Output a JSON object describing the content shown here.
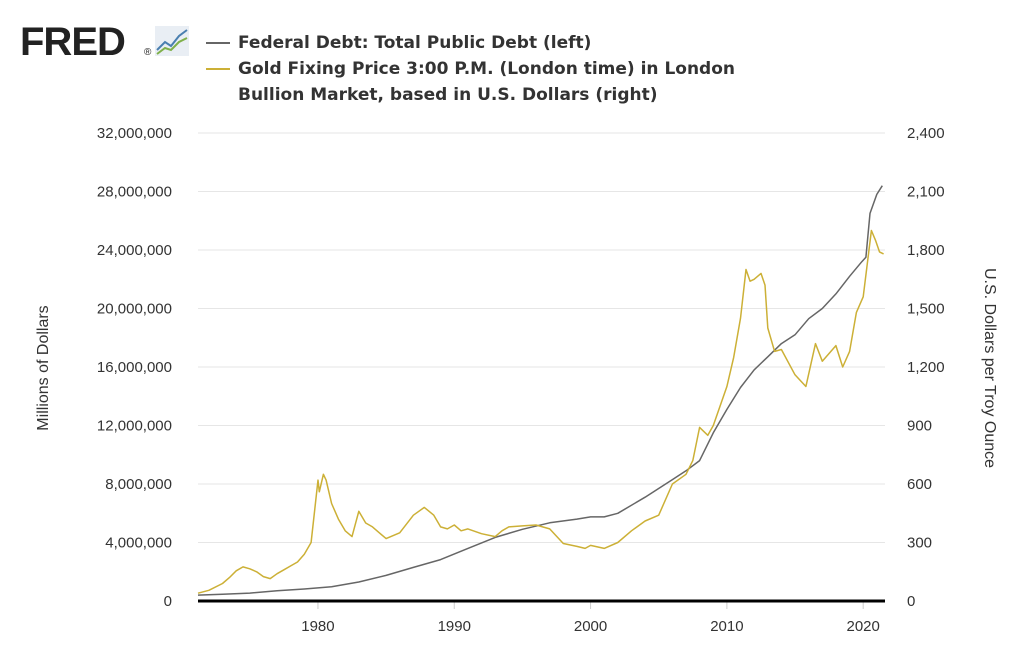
{
  "brand": {
    "text": "FRED",
    "mark": "®"
  },
  "chart_data": {
    "type": "line",
    "legend": [
      {
        "name": "Federal Debt: Total Public Debt (left)",
        "color": "#666666"
      },
      {
        "name": "Gold Fixing Price 3:00 P.M. (London time) in London",
        "name2": "Bullion Market, based in U.S. Dollars (right)",
        "color": "#ccb036"
      }
    ],
    "xlabel": "",
    "ylabel_left": "Millions of Dollars",
    "ylabel_right": "U.S. Dollars per Troy Ounce",
    "xlim": [
      1971.2,
      2021.6
    ],
    "ylim_left": [
      0,
      32000000
    ],
    "ylim_right": [
      0,
      2400
    ],
    "x_ticks": [
      1980,
      1990,
      2000,
      2010,
      2020
    ],
    "y_ticks_left": [
      "0",
      "4,000,000",
      "8,000,000",
      "12,000,000",
      "16,000,000",
      "20,000,000",
      "24,000,000",
      "28,000,000",
      "32,000,000"
    ],
    "y_ticks_left_values": [
      0,
      4000000,
      8000000,
      12000000,
      16000000,
      20000000,
      24000000,
      28000000,
      32000000
    ],
    "y_ticks_right": [
      "0",
      "300",
      "600",
      "900",
      "1,200",
      "1,500",
      "1,800",
      "2,100",
      "2,400"
    ],
    "y_ticks_right_values": [
      0,
      300,
      600,
      900,
      1200,
      1500,
      1800,
      2100,
      2400
    ],
    "grid": true,
    "series": [
      {
        "name": "Federal Debt: Total Public Debt (left)",
        "axis": "left",
        "x": [
          1971.2,
          1973,
          1975,
          1977,
          1979,
          1981,
          1983,
          1985,
          1987,
          1989,
          1991,
          1993,
          1995,
          1997,
          1999,
          2000,
          2001,
          2002,
          2004,
          2006,
          2007,
          2008,
          2009,
          2010,
          2011,
          2012,
          2013,
          2014,
          2015,
          2016,
          2017,
          2018,
          2019,
          2019.9,
          2020.2,
          2020.5,
          2021,
          2021.4
        ],
        "y": [
          400000,
          460000,
          540000,
          700000,
          820000,
          970000,
          1300000,
          1750000,
          2300000,
          2830000,
          3600000,
          4350000,
          4900000,
          5350000,
          5600000,
          5750000,
          5750000,
          6000000,
          7100000,
          8300000,
          8900000,
          9600000,
          11500000,
          13100000,
          14600000,
          15800000,
          16700000,
          17600000,
          18200000,
          19300000,
          20000000,
          21000000,
          22200000,
          23200000,
          23500000,
          26500000,
          27800000,
          28400000
        ]
      },
      {
        "name": "Gold Fixing Price 3:00 P.M. (London time) in London Bullion Market, based in U.S. Dollars (right)",
        "axis": "right",
        "x": [
          1971.2,
          1972,
          1973,
          1973.5,
          1974,
          1974.5,
          1975,
          1975.5,
          1976,
          1976.5,
          1977,
          1977.5,
          1978,
          1978.5,
          1979,
          1979.5,
          1980,
          1980.1,
          1980.4,
          1980.6,
          1981,
          1981.5,
          1982,
          1982.5,
          1983,
          1983.5,
          1984,
          1984.5,
          1985,
          1986,
          1987,
          1987.8,
          1988.5,
          1989,
          1989.5,
          1990,
          1990.5,
          1991,
          1992,
          1993,
          1993.5,
          1994,
          1995,
          1996,
          1997,
          1998,
          1999,
          1999.6,
          2000,
          2001,
          2002,
          2003,
          2004,
          2005,
          2006,
          2007,
          2007.5,
          2008,
          2008.6,
          2009,
          2009.5,
          2010,
          2010.5,
          2011,
          2011.4,
          2011.7,
          2012,
          2012.5,
          2012.8,
          2013,
          2013.5,
          2014,
          2015,
          2015.8,
          2016.5,
          2017,
          2018,
          2018.5,
          2019,
          2019.5,
          2020,
          2020.6,
          2020.9,
          2021.2,
          2021.5
        ],
        "y": [
          40,
          55,
          90,
          120,
          155,
          175,
          165,
          150,
          125,
          115,
          140,
          160,
          180,
          200,
          240,
          300,
          620,
          560,
          650,
          620,
          500,
          420,
          360,
          330,
          460,
          400,
          380,
          350,
          320,
          350,
          440,
          480,
          440,
          380,
          370,
          390,
          360,
          370,
          345,
          330,
          360,
          380,
          385,
          390,
          370,
          295,
          280,
          270,
          285,
          270,
          300,
          360,
          410,
          440,
          600,
          650,
          720,
          890,
          850,
          900,
          1000,
          1100,
          1250,
          1450,
          1700,
          1640,
          1650,
          1680,
          1620,
          1400,
          1280,
          1290,
          1160,
          1100,
          1320,
          1230,
          1310,
          1200,
          1280,
          1480,
          1560,
          1900,
          1850,
          1790,
          1780
        ]
      }
    ]
  }
}
